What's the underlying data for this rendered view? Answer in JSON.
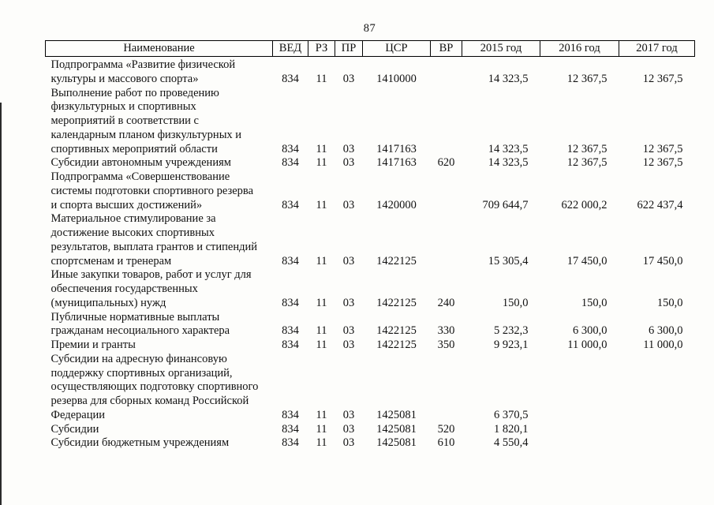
{
  "page": {
    "number": "87"
  },
  "colors": {
    "text": "#111111",
    "border": "#000000",
    "background": "#fdfdfb"
  },
  "table": {
    "headers": [
      "Наименование",
      "ВЕД",
      "РЗ",
      "ПР",
      "ЦСР",
      "ВР",
      "2015 год",
      "2016 год",
      "2017 год"
    ],
    "rows": [
      {
        "name": "Подпрограмма «Развитие физической\nкультуры и массового спорта»",
        "ved": "834",
        "rz": "11",
        "pr": "03",
        "csr": "1410000",
        "vr": "",
        "y2015": "14 323,5",
        "y2016": "12 367,5",
        "y2017": "12 367,5"
      },
      {
        "name": "Выполнение работ по проведению\nфизкультурных и спортивных\nмероприятий в соответствии с\nкалендарным планом физкультурных и\nспортивных мероприятий области",
        "ved": "834",
        "rz": "11",
        "pr": "03",
        "csr": "1417163",
        "vr": "",
        "y2015": "14 323,5",
        "y2016": "12 367,5",
        "y2017": "12 367,5"
      },
      {
        "name": "Субсидии автономным учреждениям",
        "ved": "834",
        "rz": "11",
        "pr": "03",
        "csr": "1417163",
        "vr": "620",
        "y2015": "14 323,5",
        "y2016": "12 367,5",
        "y2017": "12 367,5"
      },
      {
        "name": "Подпрограмма «Совершенствование\nсистемы подготовки спортивного резерва\nи спорта высших достижений»",
        "ved": "834",
        "rz": "11",
        "pr": "03",
        "csr": "1420000",
        "vr": "",
        "y2015": "709 644,7",
        "y2016": "622 000,2",
        "y2017": "622 437,4"
      },
      {
        "name": "Материальное стимулирование за\nдостижение высоких спортивных\nрезультатов, выплата грантов и стипендий\nспортсменам и тренерам",
        "ved": "834",
        "rz": "11",
        "pr": "03",
        "csr": "1422125",
        "vr": "",
        "y2015": "15 305,4",
        "y2016": "17 450,0",
        "y2017": "17 450,0"
      },
      {
        "name": "Иные закупки товаров, работ и услуг для\nобеспечения государственных\n(муниципальных) нужд",
        "ved": "834",
        "rz": "11",
        "pr": "03",
        "csr": "1422125",
        "vr": "240",
        "y2015": "150,0",
        "y2016": "150,0",
        "y2017": "150,0"
      },
      {
        "name": "Публичные нормативные выплаты\nгражданам несоциального характера",
        "ved": "834",
        "rz": "11",
        "pr": "03",
        "csr": "1422125",
        "vr": "330",
        "y2015": "5 232,3",
        "y2016": "6 300,0",
        "y2017": "6 300,0"
      },
      {
        "name": "Премии и гранты",
        "ved": "834",
        "rz": "11",
        "pr": "03",
        "csr": "1422125",
        "vr": "350",
        "y2015": "9 923,1",
        "y2016": "11 000,0",
        "y2017": "11 000,0"
      },
      {
        "name": "Субсидии на адресную финансовую\nподдержку спортивных организаций,\nосуществляющих подготовку спортивного\nрезерва для сборных команд Российской\nФедерации",
        "ved": "834",
        "rz": "11",
        "pr": "03",
        "csr": "1425081",
        "vr": "",
        "y2015": "6 370,5",
        "y2016": "",
        "y2017": ""
      },
      {
        "name": "Субсидии",
        "ved": "834",
        "rz": "11",
        "pr": "03",
        "csr": "1425081",
        "vr": "520",
        "y2015": "1 820,1",
        "y2016": "",
        "y2017": ""
      },
      {
        "name": "Субсидии бюджетным учреждениям",
        "ved": "834",
        "rz": "11",
        "pr": "03",
        "csr": "1425081",
        "vr": "610",
        "y2015": "4 550,4",
        "y2016": "",
        "y2017": ""
      }
    ]
  }
}
